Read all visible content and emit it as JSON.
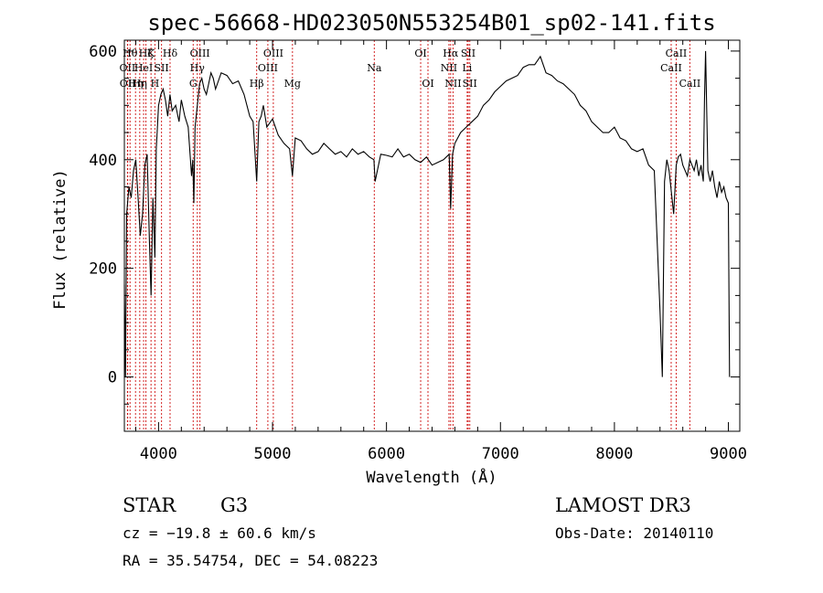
{
  "chart_data": {
    "type": "line",
    "title": "spec-56668-HD023050N553254B01_sp02-141.fits",
    "xlabel": "Wavelength (Å)",
    "ylabel": "Flux (relative)",
    "xlim": [
      3700,
      9100
    ],
    "ylim": [
      -100,
      620
    ],
    "xticks": [
      4000,
      5000,
      6000,
      7000,
      8000,
      9000
    ],
    "yticks": [
      0,
      200,
      400,
      600
    ],
    "grid": false,
    "line_color": "#000000",
    "marker_color": "#cc0000",
    "series": [
      {
        "x": [
          3700,
          3710,
          3720,
          3740,
          3760,
          3780,
          3800,
          3820,
          3840,
          3860,
          3880,
          3900,
          3920,
          3934,
          3950,
          3968,
          3980,
          4000,
          4020,
          4040,
          4060,
          4080,
          4100,
          4120,
          4150,
          4180,
          4200,
          4230,
          4260,
          4290,
          4300,
          4310,
          4320,
          4340,
          4360,
          4380,
          4400,
          4420,
          4440,
          4460,
          4480,
          4500,
          4550,
          4600,
          4650,
          4700,
          4750,
          4800,
          4830,
          4861,
          4880,
          4900,
          4920,
          4950,
          5000,
          5050,
          5100,
          5150,
          5175,
          5200,
          5250,
          5300,
          5350,
          5400,
          5450,
          5500,
          5550,
          5600,
          5650,
          5700,
          5750,
          5800,
          5850,
          5890,
          5900,
          5950,
          6000,
          6050,
          6100,
          6150,
          6200,
          6250,
          6300,
          6350,
          6400,
          6450,
          6500,
          6550,
          6563,
          6580,
          6600,
          6650,
          6700,
          6750,
          6800,
          6850,
          6900,
          6950,
          7000,
          7050,
          7100,
          7150,
          7200,
          7250,
          7300,
          7350,
          7400,
          7450,
          7500,
          7550,
          7600,
          7650,
          7700,
          7750,
          7800,
          7850,
          7900,
          7950,
          8000,
          8050,
          8100,
          8150,
          8200,
          8250,
          8300,
          8350,
          8400,
          8420,
          8440,
          8460,
          8480,
          8500,
          8520,
          8542,
          8560,
          8580,
          8600,
          8620,
          8640,
          8662,
          8680,
          8700,
          8720,
          8740,
          8760,
          8780,
          8790,
          8800,
          8820,
          8840,
          8860,
          8880,
          8900,
          8920,
          8940,
          8960,
          8980,
          9000,
          9010
        ],
        "values": [
          170,
          0,
          300,
          350,
          330,
          380,
          400,
          330,
          260,
          300,
          390,
          410,
          250,
          150,
          330,
          220,
          420,
          500,
          520,
          530,
          510,
          480,
          520,
          490,
          500,
          470,
          510,
          480,
          460,
          370,
          400,
          320,
          460,
          500,
          540,
          550,
          530,
          520,
          540,
          560,
          550,
          530,
          560,
          555,
          540,
          545,
          520,
          480,
          470,
          360,
          470,
          480,
          500,
          460,
          475,
          445,
          430,
          420,
          370,
          440,
          435,
          420,
          410,
          415,
          430,
          420,
          410,
          415,
          405,
          420,
          410,
          415,
          405,
          400,
          360,
          410,
          408,
          405,
          420,
          405,
          410,
          400,
          395,
          405,
          390,
          395,
          400,
          410,
          310,
          410,
          430,
          450,
          460,
          470,
          480,
          500,
          510,
          525,
          535,
          545,
          550,
          555,
          570,
          575,
          575,
          590,
          560,
          555,
          545,
          540,
          530,
          520,
          500,
          490,
          470,
          460,
          450,
          450,
          460,
          440,
          435,
          420,
          415,
          420,
          390,
          380,
          120,
          0,
          360,
          400,
          380,
          340,
          300,
          390,
          405,
          410,
          390,
          380,
          370,
          400,
          390,
          380,
          400,
          370,
          390,
          360,
          510,
          600,
          380,
          360,
          380,
          350,
          330,
          360,
          340,
          350,
          330,
          320,
          0
        ]
      }
    ],
    "spectral_lines": [
      {
        "x": 3727,
        "label": "OII",
        "row": 2
      },
      {
        "x": 3729,
        "label": "OII",
        "row": 3
      },
      {
        "x": 3750,
        "label": "Hθ",
        "row": 1
      },
      {
        "x": 3798,
        "label": "Hη",
        "row": 3
      },
      {
        "x": 3835,
        "label": "Hη",
        "row": 3
      },
      {
        "x": 3869,
        "label": "HeI",
        "row": 2
      },
      {
        "x": 3889,
        "label": "Hζ",
        "row": 1
      },
      {
        "x": 3934,
        "label": "K",
        "row": 1
      },
      {
        "x": 3968,
        "label": "H",
        "row": 3
      },
      {
        "x": 4026,
        "label": "SII",
        "row": 2
      },
      {
        "x": 4101,
        "label": "Hδ",
        "row": 1
      },
      {
        "x": 4304,
        "label": "G",
        "row": 3
      },
      {
        "x": 4340,
        "label": "Hγ",
        "row": 2
      },
      {
        "x": 4363,
        "label": "OIII",
        "row": 1
      },
      {
        "x": 4861,
        "label": "Hβ",
        "row": 3
      },
      {
        "x": 4959,
        "label": "OIII",
        "row": 2
      },
      {
        "x": 5007,
        "label": "OIII",
        "row": 1
      },
      {
        "x": 5175,
        "label": "Mg",
        "row": 3
      },
      {
        "x": 5893,
        "label": "Na",
        "row": 2
      },
      {
        "x": 6300,
        "label": "OI",
        "row": 1
      },
      {
        "x": 6364,
        "label": "OI",
        "row": 3
      },
      {
        "x": 6548,
        "label": "NII",
        "row": 2
      },
      {
        "x": 6563,
        "label": "Hα",
        "row": 1
      },
      {
        "x": 6584,
        "label": "NII",
        "row": 3
      },
      {
        "x": 6708,
        "label": "Li",
        "row": 2
      },
      {
        "x": 6717,
        "label": "SII",
        "row": 1
      },
      {
        "x": 6731,
        "label": "SII",
        "row": 3
      },
      {
        "x": 8498,
        "label": "CaII",
        "row": 2
      },
      {
        "x": 8542,
        "label": "CaII",
        "row": 1
      },
      {
        "x": 8662,
        "label": "CaII",
        "row": 3
      }
    ]
  },
  "info": {
    "object_class": "STAR",
    "subclass": "G3",
    "survey": "LAMOST DR3",
    "redshift_line": "cz = −19.8 ± 60.6 km/s",
    "obs_date": "Obs-Date: 20140110",
    "coords": "RA =  35.54754, DEC =  54.08223"
  }
}
